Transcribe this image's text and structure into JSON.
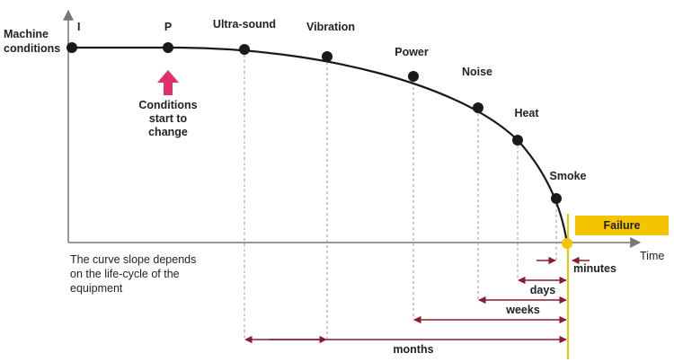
{
  "axis": {
    "y_label": [
      "Machine",
      "conditions"
    ],
    "x_label": "Time"
  },
  "points": [
    {
      "label": "I"
    },
    {
      "label": "P"
    },
    {
      "label": "Ultra-sound"
    },
    {
      "label": "Vibration"
    },
    {
      "label": "Power"
    },
    {
      "label": "Noise"
    },
    {
      "label": "Heat"
    },
    {
      "label": "Smoke"
    }
  ],
  "p_note": [
    "Conditions",
    "start to",
    "change"
  ],
  "slope_note": [
    "The curve slope depends",
    "on the life-cycle of the",
    "equipment"
  ],
  "failure": "Failure",
  "intervals": {
    "minutes": "minutes",
    "days": "days",
    "weeks": "weeks",
    "months": "months"
  }
}
